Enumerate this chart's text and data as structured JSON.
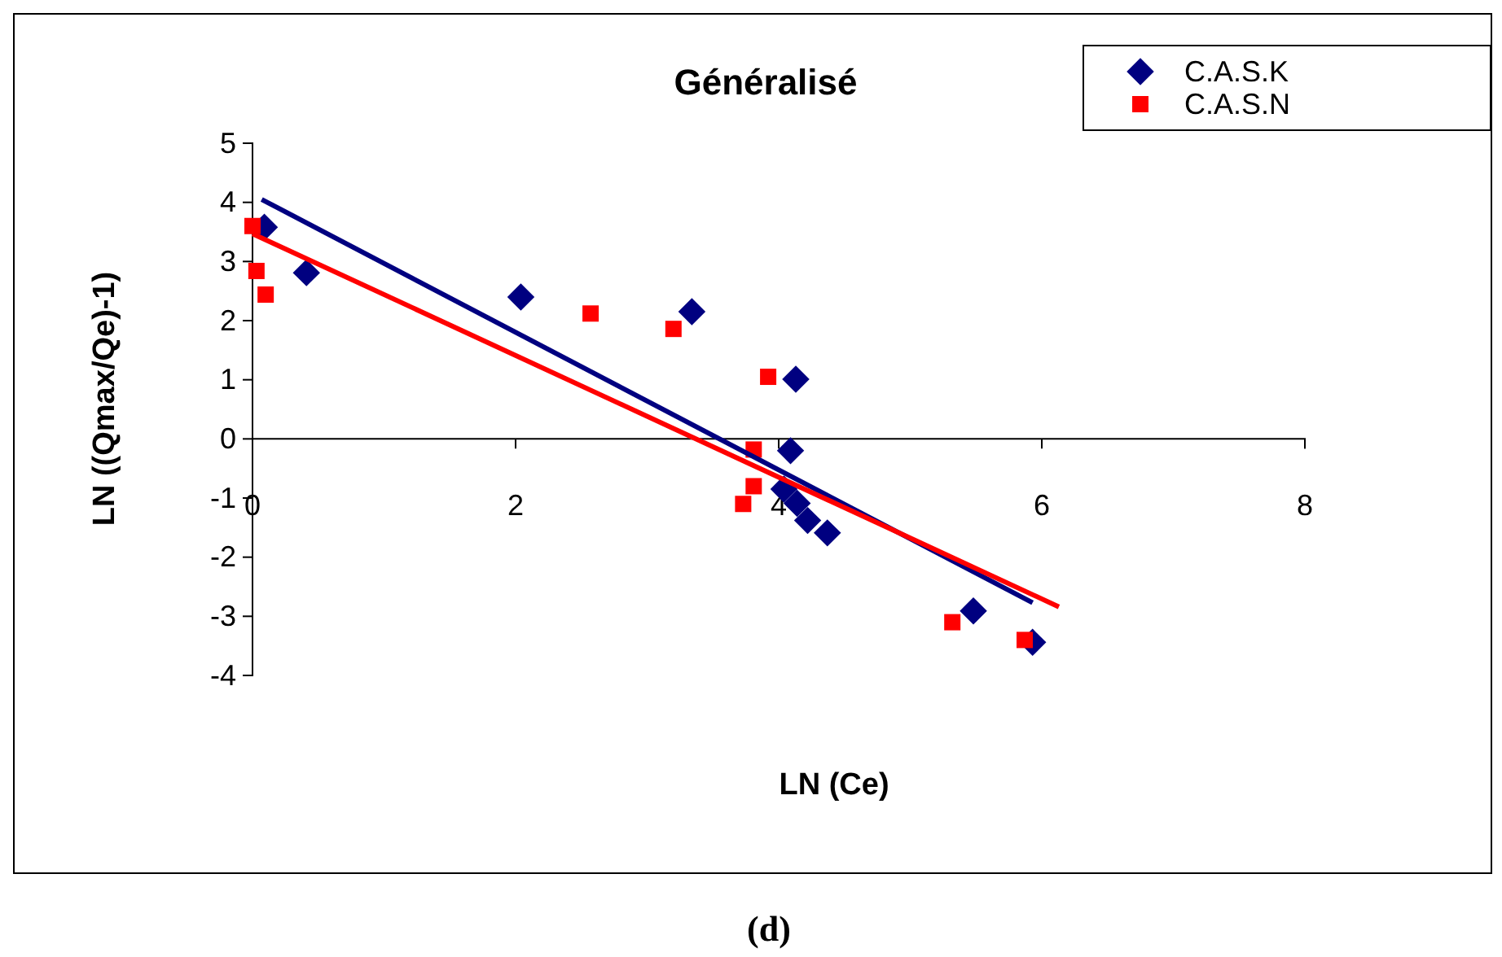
{
  "chart_data": {
    "type": "scatter",
    "title": "Généralisé",
    "xlabel": "LN (Ce)",
    "ylabel": "LN ((Qmax/Qe)-1)",
    "xlim": [
      0,
      8
    ],
    "xticks": [
      0,
      2,
      4,
      6,
      8
    ],
    "ylim": [
      -4,
      5
    ],
    "yticks": [
      -4,
      -3,
      -2,
      -1,
      0,
      1,
      2,
      3,
      4,
      5
    ],
    "grid": false,
    "legend": "top right",
    "annotations": [
      "(d)"
    ],
    "series": [
      {
        "name": "C.A.S.K",
        "marker": "diamond",
        "color": "#000080",
        "x": [
          0.09,
          0.41,
          2.04,
          3.34,
          4.13,
          4.09,
          4.04,
          4.14,
          4.22,
          4.37,
          5.48,
          5.93
        ],
        "values": [
          3.58,
          2.81,
          2.4,
          2.15,
          1.01,
          -0.2,
          -0.85,
          -1.09,
          -1.38,
          -1.59,
          -2.91,
          -3.44
        ]
      },
      {
        "name": "C.A.S.N",
        "marker": "square",
        "color": "#ff0000",
        "x": [
          0.0,
          0.03,
          0.1,
          2.57,
          3.2,
          3.92,
          3.81,
          3.81,
          3.73,
          5.32,
          5.87
        ],
        "values": [
          3.6,
          2.84,
          2.44,
          2.12,
          1.86,
          1.05,
          -0.18,
          -0.8,
          -1.1,
          -3.1,
          -3.4
        ]
      },
      {
        "type": "line",
        "marker": "none",
        "line_style": "solid",
        "color": "#000080",
        "x": [
          0.07,
          5.93
        ],
        "values": [
          4.05,
          -2.77
        ]
      },
      {
        "type": "line",
        "marker": "none",
        "line_style": "solid",
        "color": "#ff0000",
        "x": [
          0.0,
          6.13
        ],
        "values": [
          3.47,
          -2.84
        ]
      }
    ]
  }
}
